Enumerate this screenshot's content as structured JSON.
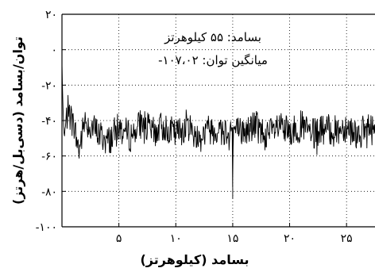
{
  "chart_data": {
    "type": "line",
    "xlabel": "بسامد (کیلوهرتز)",
    "ylabel": "توان/بسامد (دسی‌بل/هرتز)",
    "xlim": [
      0,
      27.5
    ],
    "ylim": [
      -100,
      20
    ],
    "x_ticks": [
      {
        "value": 5,
        "label": "۵"
      },
      {
        "value": 10,
        "label": "۱۰"
      },
      {
        "value": 15,
        "label": "۱۵"
      },
      {
        "value": 20,
        "label": "۲۰"
      },
      {
        "value": 25,
        "label": "۲۵"
      }
    ],
    "y_ticks": [
      {
        "value": 20,
        "label": "۲۰"
      },
      {
        "value": 0,
        "label": "۰"
      },
      {
        "value": -20,
        "label": "-۲۰"
      },
      {
        "value": -40,
        "label": "-۴۰"
      },
      {
        "value": -60,
        "label": "-۶۰"
      },
      {
        "value": -80,
        "label": "-۸۰"
      },
      {
        "value": -100,
        "label": "-۱۰۰"
      }
    ],
    "grid": true,
    "series": [
      {
        "color": "#000000",
        "baseline": -44,
        "noise_amplitude": 9,
        "seed": 7,
        "points": [
          {
            "x": 0.0,
            "y": -8
          },
          {
            "x": 0.1,
            "y": -36
          },
          {
            "x": 0.2,
            "y": -50
          },
          {
            "x": 0.5,
            "y": -34
          },
          {
            "x": 1.0,
            "y": -42
          },
          {
            "x": 1.5,
            "y": -57
          },
          {
            "x": 2.0,
            "y": -40
          },
          {
            "x": 3.0,
            "y": -46
          },
          {
            "x": 4.0,
            "y": -52
          },
          {
            "x": 5.0,
            "y": -44
          },
          {
            "x": 6.0,
            "y": -49
          },
          {
            "x": 7.0,
            "y": -41
          },
          {
            "x": 8.0,
            "y": -47
          },
          {
            "x": 9.0,
            "y": -43
          },
          {
            "x": 10.0,
            "y": -48
          },
          {
            "x": 11.0,
            "y": -42
          },
          {
            "x": 12.0,
            "y": -50
          },
          {
            "x": 13.0,
            "y": -44
          },
          {
            "x": 14.0,
            "y": -46
          },
          {
            "x": 14.95,
            "y": -44
          },
          {
            "x": 15.0,
            "y": -84
          },
          {
            "x": 15.05,
            "y": -45
          },
          {
            "x": 16.0,
            "y": -47
          },
          {
            "x": 17.0,
            "y": -42
          },
          {
            "x": 18.0,
            "y": -49
          },
          {
            "x": 19.0,
            "y": -44
          },
          {
            "x": 20.0,
            "y": -47
          },
          {
            "x": 21.0,
            "y": -43
          },
          {
            "x": 22.0,
            "y": -48
          },
          {
            "x": 23.0,
            "y": -45
          },
          {
            "x": 24.0,
            "y": -46
          },
          {
            "x": 25.0,
            "y": -43
          },
          {
            "x": 26.0,
            "y": -48
          },
          {
            "x": 27.0,
            "y": -44
          },
          {
            "x": 27.5,
            "y": -46
          }
        ]
      }
    ],
    "annotations": [
      {
        "text": "بسامد: ۵۵ کیلوهرتز"
      },
      {
        "text": "میانگین توان: ۱۰۷،۰۲-"
      }
    ]
  }
}
